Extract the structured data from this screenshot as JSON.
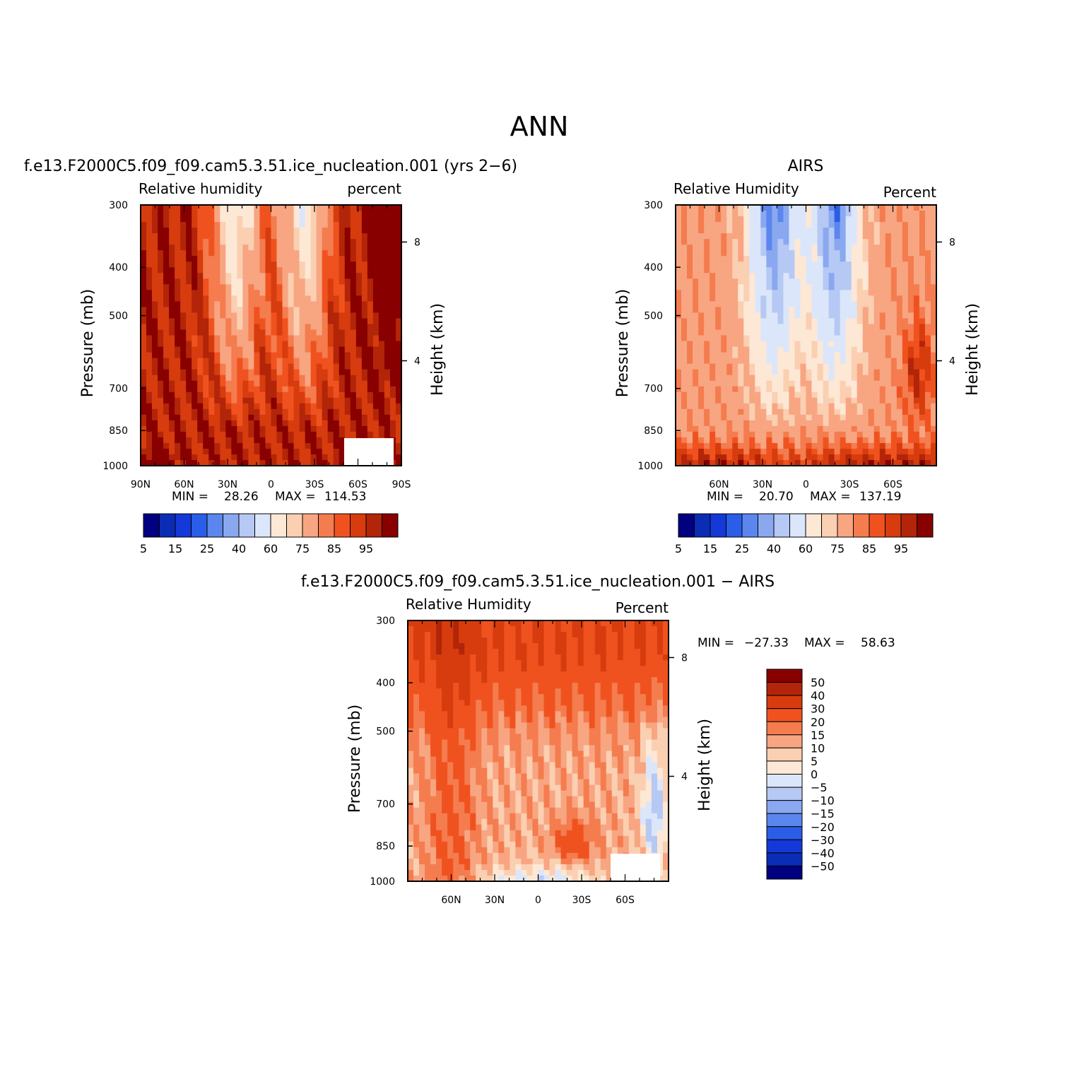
{
  "figure_title": "ANN",
  "chart_data": [
    {
      "type": "heatmap",
      "title": "f.e13.F2000C5.f09_f09.cam5.3.51.ice_nucleation.001 (yrs 2−6)",
      "left_label": "Relative humidity",
      "right_label": "percent",
      "ylabel": "Pressure (mb)",
      "ylabel_right": "Height (km)",
      "y_ticks": [
        "300",
        "400",
        "500",
        "700",
        "850",
        "1000"
      ],
      "y_values": [
        300,
        400,
        500,
        700,
        850,
        1000
      ],
      "height_ticks": [
        "8",
        "4"
      ],
      "x_ticks": [
        "90N",
        "60N",
        "30N",
        "0",
        "30S",
        "60S",
        "90S"
      ],
      "x_values": [
        90,
        60,
        30,
        0,
        -30,
        -60,
        -90
      ],
      "xlim": [
        90,
        -90
      ],
      "ylim": [
        300,
        1000
      ],
      "min_label": "MIN =",
      "min_value": "28.26",
      "max_label": "MAX =",
      "max_value": "114.53",
      "colorbar_labels": [
        "5",
        "15",
        "25",
        "40",
        "60",
        "75",
        "85",
        "95"
      ],
      "colorbar_colors": [
        "#000080",
        "#0b2cb5",
        "#1439d8",
        "#2a5de8",
        "#5b86ee",
        "#8aa8f0",
        "#b6c8f4",
        "#dbe6fa",
        "#fde8d6",
        "#fbcfb1",
        "#f8a582",
        "#f47c4e",
        "#f0521f",
        "#d73c0e",
        "#b32509",
        "#880000"
      ],
      "field": "model"
    },
    {
      "type": "heatmap",
      "title": "AIRS",
      "left_label": "Relative Humidity",
      "right_label": "Percent",
      "ylabel": "Pressure (mb)",
      "ylabel_right": "Height (km)",
      "y_ticks": [
        "300",
        "400",
        "500",
        "700",
        "850",
        "1000"
      ],
      "y_values": [
        300,
        400,
        500,
        700,
        850,
        1000
      ],
      "height_ticks": [
        "8",
        "4"
      ],
      "x_ticks": [
        "60N",
        "30N",
        "0",
        "30S",
        "60S"
      ],
      "x_values": [
        60,
        30,
        0,
        -30,
        -60
      ],
      "xlim": [
        90,
        -90
      ],
      "ylim": [
        300,
        1000
      ],
      "min_label": "MIN =",
      "min_value": "20.70",
      "max_label": "MAX =",
      "max_value": "137.19",
      "colorbar_labels": [
        "5",
        "15",
        "25",
        "40",
        "60",
        "75",
        "85",
        "95"
      ],
      "colorbar_colors": [
        "#000080",
        "#0b2cb5",
        "#1439d8",
        "#2a5de8",
        "#5b86ee",
        "#8aa8f0",
        "#b6c8f4",
        "#dbe6fa",
        "#fde8d6",
        "#fbcfb1",
        "#f8a582",
        "#f47c4e",
        "#f0521f",
        "#d73c0e",
        "#b32509",
        "#880000"
      ],
      "field": "obs"
    },
    {
      "type": "heatmap",
      "title": "f.e13.F2000C5.f09_f09.cam5.3.51.ice_nucleation.001 − AIRS",
      "left_label": "Relative Humidity",
      "right_label": "Percent",
      "ylabel": "Pressure (mb)",
      "ylabel_right": "Height (km)",
      "y_ticks": [
        "300",
        "400",
        "500",
        "700",
        "850",
        "1000"
      ],
      "y_values": [
        300,
        400,
        500,
        700,
        850,
        1000
      ],
      "height_ticks": [
        "8",
        "4"
      ],
      "x_ticks": [
        "60N",
        "30N",
        "0",
        "30S",
        "60S"
      ],
      "x_values": [
        60,
        30,
        0,
        -30,
        -60
      ],
      "xlim": [
        90,
        -90
      ],
      "ylim": [
        300,
        1000
      ],
      "min_label": "MIN =",
      "min_value": "−27.33",
      "max_label": "MAX =",
      "max_value": "58.63",
      "colorbar_labels": [
        "50",
        "40",
        "30",
        "20",
        "15",
        "10",
        "5",
        "0",
        "−5",
        "−10",
        "−15",
        "−20",
        "−30",
        "−40",
        "−50"
      ],
      "colorbar_colors": [
        "#880000",
        "#b32509",
        "#d73c0e",
        "#f0521f",
        "#f47c4e",
        "#f8a582",
        "#fbcfb1",
        "#fde8d6",
        "#dbe6fa",
        "#b6c8f4",
        "#8aa8f0",
        "#5b86ee",
        "#2a5de8",
        "#1439d8",
        "#0b2cb5",
        "#000080"
      ],
      "field": "diff"
    }
  ]
}
